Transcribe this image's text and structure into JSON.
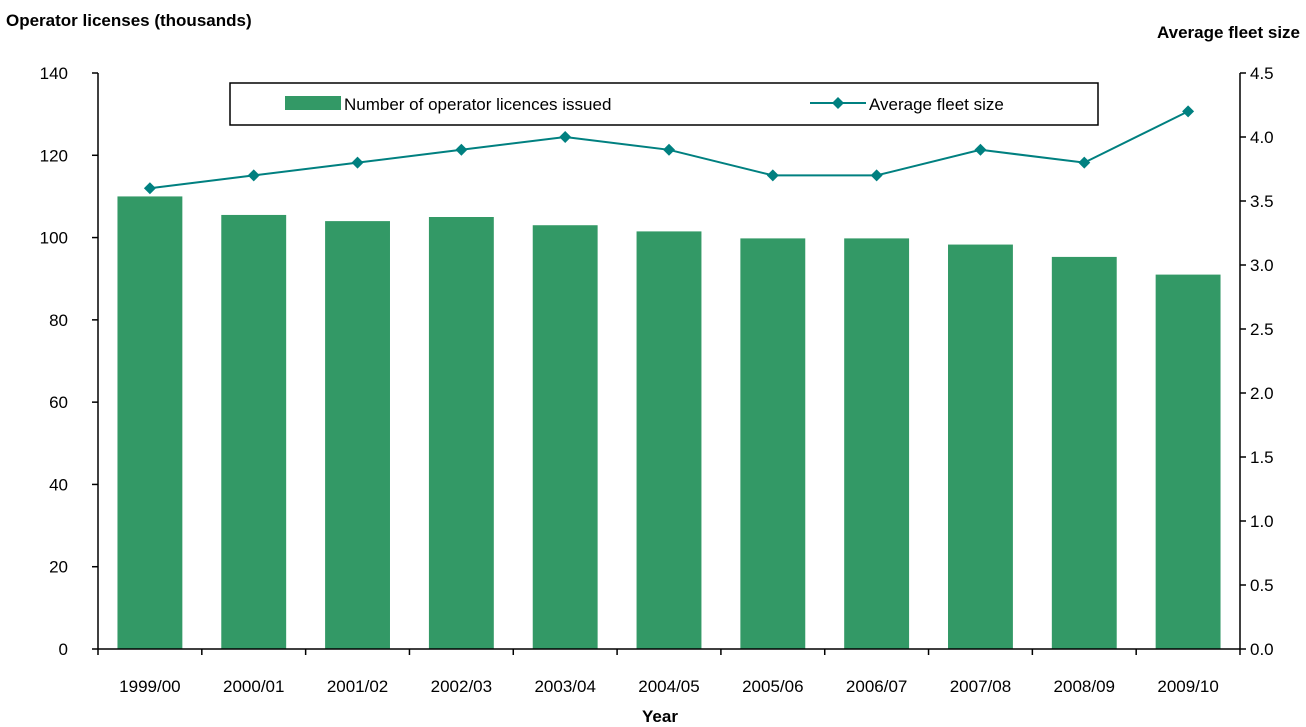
{
  "chart_data": {
    "type": "bar",
    "categories": [
      "1999/00",
      "2000/01",
      "2001/02",
      "2002/03",
      "2003/04",
      "2004/05",
      "2005/06",
      "2006/07",
      "2007/08",
      "2008/09",
      "2009/10"
    ],
    "series": [
      {
        "name": "Number of operator licences issued",
        "kind": "bar",
        "axis": "left",
        "color": "#339966",
        "values": [
          110,
          105.5,
          104,
          105,
          103,
          101.5,
          99.8,
          99.8,
          98.3,
          95.3,
          91
        ]
      },
      {
        "name": "Average fleet size",
        "kind": "line",
        "axis": "right",
        "color": "#008080",
        "marker": "diamond",
        "values": [
          3.6,
          3.7,
          3.8,
          3.9,
          4.0,
          3.9,
          3.7,
          3.7,
          3.9,
          3.8,
          4.2
        ]
      }
    ],
    "left_axis": {
      "label": "Operator licenses (thousands)",
      "min": 0,
      "max": 140,
      "ticks": [
        "0",
        "20",
        "40",
        "60",
        "80",
        "100",
        "120",
        "140"
      ]
    },
    "right_axis": {
      "label": "Average fleet size",
      "min": 0,
      "max": 4.5,
      "ticks": [
        "0.0",
        "0.5",
        "1.0",
        "1.5",
        "2.0",
        "2.5",
        "3.0",
        "3.5",
        "4.0",
        "4.5"
      ]
    },
    "xlabel": "Year",
    "grid": false,
    "legend_position": "top-center"
  }
}
